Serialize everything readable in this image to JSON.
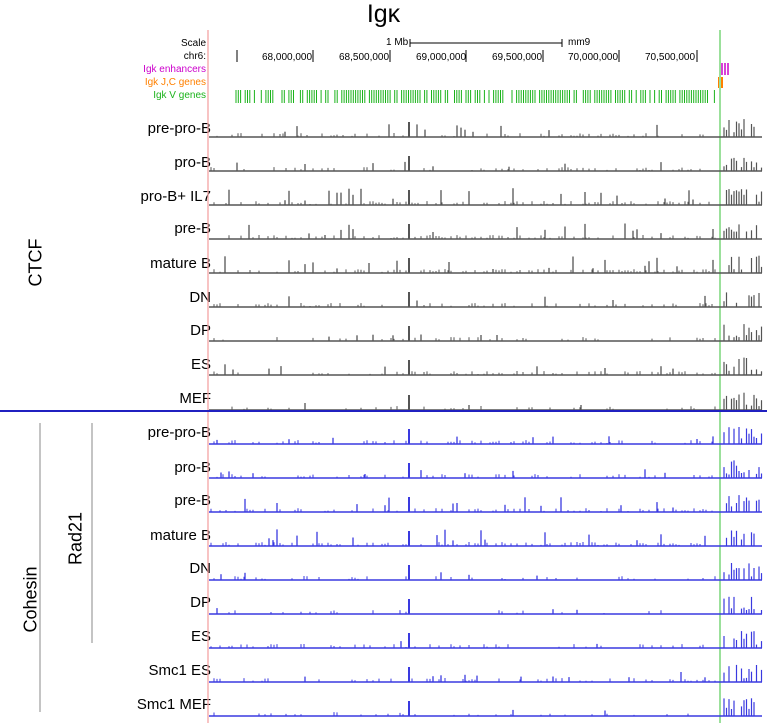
{
  "title": "Igκ",
  "header": {
    "scale_label": "Scale",
    "chr_label": "chr6:",
    "scale_bar_text": "1 Mb",
    "assembly": "mm9",
    "positions": [
      "68,000,000",
      "68,500,000",
      "69,000,000",
      "69,500,000",
      "70,000,000",
      "70,500,000"
    ],
    "annotation_tracks": [
      {
        "label": "Igk enhancers",
        "color": "#cc00cc"
      },
      {
        "label": "Igk J,C genes",
        "color": "#ff8000"
      },
      {
        "label": "Igk V genes",
        "color": "#1bb31b"
      }
    ]
  },
  "groups": {
    "ctcf": "CTCF",
    "cohesin": "Cohesin",
    "rad21": "Rad21"
  },
  "ctcf_tracks": [
    "pre-pro-B",
    "pro-B",
    "pro-B+ IL7",
    "pre-B",
    "mature B",
    "DN",
    "DP",
    "ES",
    "MEF"
  ],
  "rad21_tracks": [
    "pre-pro-B",
    "pro-B",
    "pre-B",
    "mature B",
    "DN",
    "DP",
    "ES"
  ],
  "smc1_tracks": [
    "Smc1  ES",
    "Smc1 MEF"
  ],
  "colors": {
    "ctcf": "#555555",
    "cohesin": "#3a3ae0",
    "red_line": "#f4a3a3",
    "green_line": "#9be09b",
    "divider": "#2020c0"
  }
}
